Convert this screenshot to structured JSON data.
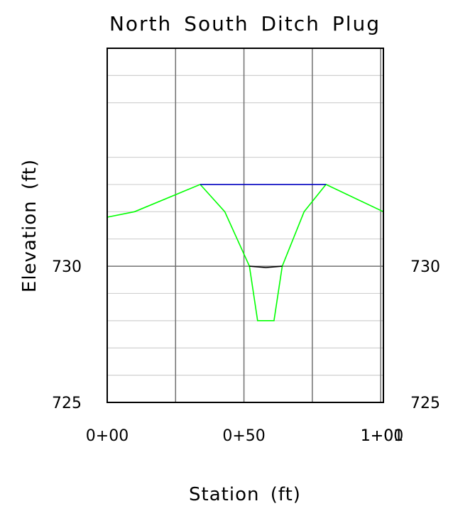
{
  "chart_data": {
    "type": "line",
    "title": "North  South  Ditch  Plug",
    "xlabel": "Station  (ft)",
    "ylabel": "Elevation  (ft)",
    "xlim": [
      0,
      101
    ],
    "ylim": [
      725,
      738
    ],
    "x_ticks": [
      {
        "value": 0,
        "label": "0+00"
      },
      {
        "value": 50,
        "label": "0+50"
      },
      {
        "value": 100,
        "label": "1+00"
      },
      {
        "value": 101,
        "label": "1+01"
      }
    ],
    "y_ticks": [
      {
        "value": 725,
        "label": "725"
      },
      {
        "value": 730,
        "label": "730"
      }
    ],
    "grid": true,
    "series": [
      {
        "color": "#00ff00",
        "x": [
          0,
          10,
          34,
          43,
          52,
          55,
          61,
          64,
          72,
          80,
          101
        ],
        "y": [
          731.8,
          732.0,
          733.0,
          732.0,
          730.0,
          728.0,
          728.0,
          730.0,
          732.0,
          733.0,
          732.0
        ]
      },
      {
        "color": "#000000",
        "x": [
          52,
          58,
          64
        ],
        "y": [
          730.0,
          729.95,
          730.0
        ]
      },
      {
        "color": "#0000c0",
        "x": [
          34,
          80
        ],
        "y": [
          733.0,
          733.0
        ]
      }
    ]
  }
}
